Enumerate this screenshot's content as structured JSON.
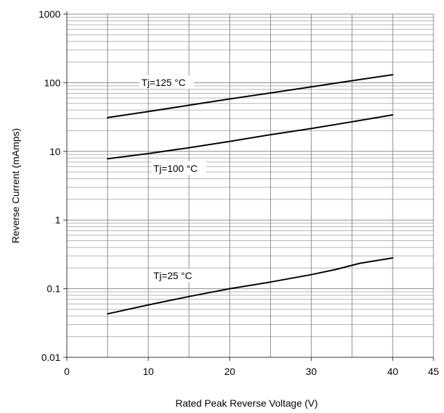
{
  "chart_data": {
    "type": "line",
    "title": "",
    "xlabel": "Rated Peak Reverse Voltage (V)",
    "ylabel": "Reverse Current (mAmps)",
    "xlim": [
      0,
      45
    ],
    "ylim": [
      0.01,
      1000
    ],
    "yscale": "log",
    "grid": true,
    "x_ticks": [
      0,
      10,
      20,
      30,
      40,
      45
    ],
    "x_tick_labels": [
      "0",
      "10",
      "20",
      "30",
      "40",
      "45"
    ],
    "y_ticks": [
      0.01,
      0.1,
      1,
      10,
      100,
      1000
    ],
    "y_tick_labels": [
      "0.01",
      "0.1",
      "1",
      "10",
      "100",
      "1000"
    ],
    "series": [
      {
        "name": "Tj=125 °C",
        "x": [
          5,
          10,
          15,
          20,
          25,
          30,
          35,
          40
        ],
        "y": [
          31,
          38,
          47,
          58,
          71,
          87,
          107,
          131
        ]
      },
      {
        "name": "Tj=100 °C",
        "x": [
          5,
          10,
          15,
          20,
          25,
          30,
          35,
          40
        ],
        "y": [
          7.8,
          9.3,
          11.3,
          14,
          17.5,
          21.5,
          27,
          34
        ]
      },
      {
        "name": "Tj=25 °C",
        "x": [
          5,
          10,
          15,
          20,
          25,
          30,
          33,
          36,
          40
        ],
        "y": [
          0.043,
          0.058,
          0.077,
          0.1,
          0.125,
          0.16,
          0.19,
          0.235,
          0.28
        ]
      }
    ]
  }
}
